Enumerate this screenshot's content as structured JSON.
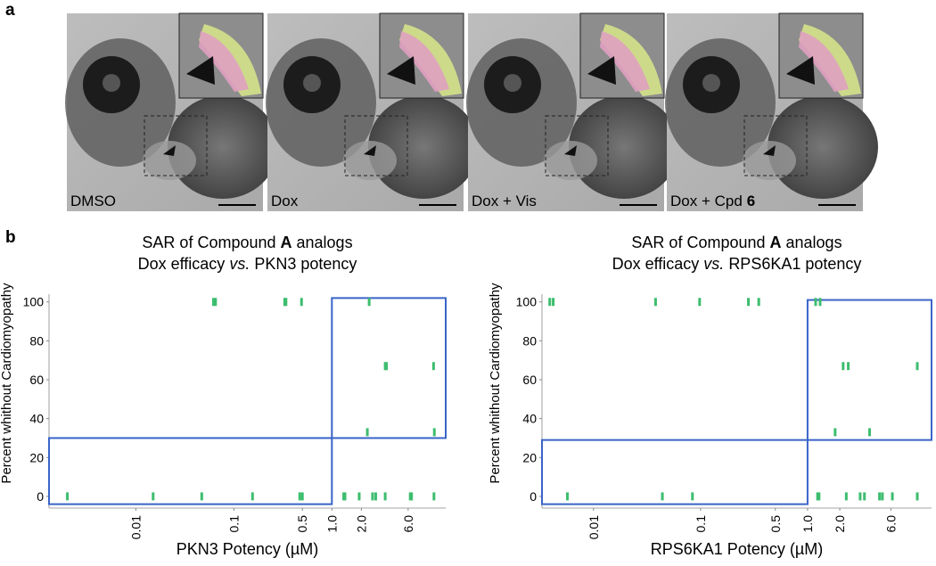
{
  "panel_a": {
    "label": "a",
    "images": [
      {
        "text": "DMSO"
      },
      {
        "text": "Dox"
      },
      {
        "text": "Dox + Vis"
      },
      {
        "text": "Dox + Cpd",
        "bold": "6"
      }
    ]
  },
  "panel_b": {
    "label": "b"
  },
  "chart_data": [
    {
      "type": "scatter",
      "title": [
        "SAR of Compound",
        "A",
        "analogs"
      ],
      "subtitle": [
        "Dox efficacy",
        "vs.",
        "PKN3 potency"
      ],
      "x_label": "PKN3 Potency (µM)",
      "y_label": "Percent whithout Cardiomyopathy",
      "log_x": true,
      "color": "#3dbd6e",
      "box_color": "#3a64c8",
      "x": [
        0.062,
        0.065,
        0.33,
        0.34,
        0.49,
        2.4,
        3.5,
        3.6,
        10.9,
        2.3,
        11.1,
        0.002,
        0.015,
        0.047,
        0.155,
        0.47,
        0.5,
        1.32,
        1.36,
        1.9,
        2.6,
        2.8,
        3.5,
        6.3,
        6.5,
        11
      ],
      "values": [
        100,
        100,
        100,
        100,
        100,
        100,
        67,
        67,
        67,
        33,
        33,
        0,
        0,
        0,
        0,
        0,
        0,
        0,
        0,
        0,
        0,
        0,
        0,
        0,
        0,
        0
      ],
      "xlim": [
        0.0013,
        14.5
      ],
      "ylim": [
        -6,
        104
      ],
      "xticks": [
        0.01,
        0.1,
        0.5,
        {
          "value": 1,
          "label": "1.0"
        },
        {
          "value": 2,
          "label": "2.0"
        },
        {
          "value": 6,
          "label": "6.0"
        }
      ],
      "yticks": [
        0,
        20,
        40,
        60,
        80,
        100
      ],
      "boxes": [
        {
          "x": [
            1,
            14.5
          ],
          "y": [
            30,
            102
          ]
        },
        {
          "x": [
            0.0013,
            1
          ],
          "y": [
            -4,
            30
          ]
        }
      ]
    },
    {
      "type": "scatter",
      "title": [
        "SAR of Compound",
        "A",
        "analogs"
      ],
      "subtitle": [
        "Dox efficacy",
        "vs.",
        "RPS6KA1 potency"
      ],
      "x_label": "RPS6KA1 Potency (µM)",
      "y_label": "Percent whithout Cardiomyopathy",
      "log_x": true,
      "color": "#3dbd6e",
      "box_color": "#3a64c8",
      "x": [
        0.0039,
        0.0042,
        0.038,
        0.098,
        0.28,
        0.35,
        1.19,
        1.31,
        2.15,
        2.4,
        10.6,
        1.81,
        3.8,
        0.0057,
        0.044,
        0.084,
        1.24,
        1.28,
        2.3,
        3.1,
        3.4,
        4.7,
        5.0,
        6.2,
        10.6
      ],
      "values": [
        100,
        100,
        100,
        100,
        100,
        100,
        100,
        100,
        67,
        67,
        67,
        33,
        33,
        0,
        0,
        0,
        0,
        0,
        0,
        0,
        0,
        0,
        0,
        0,
        0
      ],
      "xlim": [
        0.0033,
        14.4
      ],
      "ylim": [
        -6,
        104
      ],
      "xticks": [
        0.01,
        0.1,
        0.5,
        {
          "value": 1,
          "label": "1.0"
        },
        {
          "value": 2,
          "label": "2.0"
        },
        {
          "value": 6,
          "label": "6.0"
        }
      ],
      "yticks": [
        0,
        20,
        40,
        60,
        80,
        100
      ],
      "boxes": [
        {
          "x": [
            1,
            14.4
          ],
          "y": [
            29,
            101
          ]
        },
        {
          "x": [
            0.0033,
            1
          ],
          "y": [
            -4,
            29
          ]
        }
      ]
    }
  ]
}
